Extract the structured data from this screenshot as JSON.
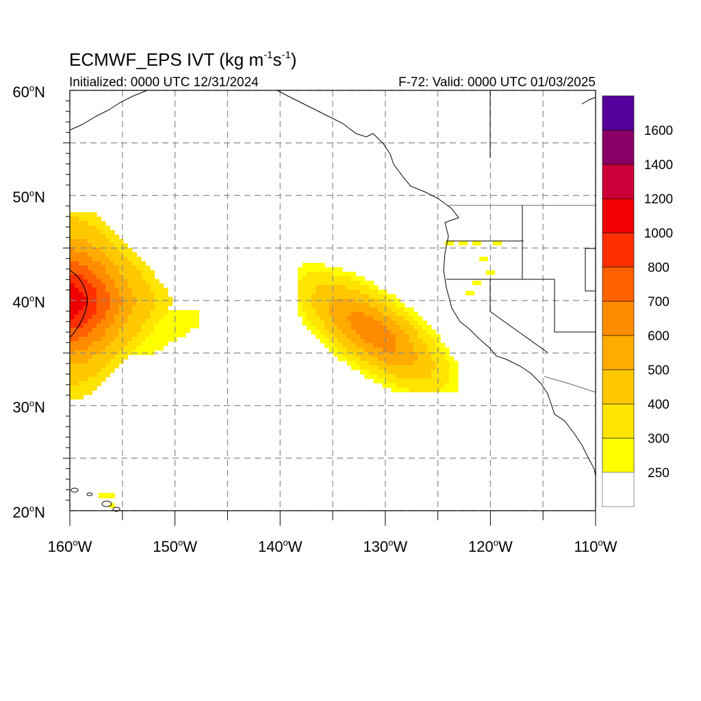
{
  "header": {
    "title_main": "ECMWF_EPS IVT (kg m",
    "title_sup1": "-1",
    "title_mid": "s",
    "title_sup2": "-1",
    "title_end": ")",
    "initialized": "Initialized: 0000 UTC 12/31/2024",
    "valid": "F-72: Valid: 0000 UTC 01/03/2025"
  },
  "map": {
    "lon_range": [
      -160,
      -110
    ],
    "lat_range": [
      20,
      60
    ],
    "grid": true,
    "lon_ticks": [
      {
        "value": -160,
        "deg": "160",
        "hemi": "W"
      },
      {
        "value": -150,
        "deg": "150",
        "hemi": "W"
      },
      {
        "value": -140,
        "deg": "140",
        "hemi": "W"
      },
      {
        "value": -130,
        "deg": "130",
        "hemi": "W"
      },
      {
        "value": -120,
        "deg": "120",
        "hemi": "W"
      },
      {
        "value": -110,
        "deg": "110",
        "hemi": "W"
      }
    ],
    "lat_ticks": [
      {
        "value": 60,
        "deg": "60",
        "hemi": "N"
      },
      {
        "value": 50,
        "deg": "50",
        "hemi": "N"
      },
      {
        "value": 40,
        "deg": "40",
        "hemi": "N"
      },
      {
        "value": 30,
        "deg": "30",
        "hemi": "N"
      },
      {
        "value": 20,
        "deg": "20",
        "hemi": "N"
      }
    ],
    "ivt_fields": [
      {
        "region": "west-edge-plume",
        "center_lon": -160,
        "center_lat": 40,
        "peak": 1000
      },
      {
        "region": "atmospheric-river-california",
        "center_lon": -130,
        "center_lat": 36.5,
        "peak": 600
      },
      {
        "region": "hawaii-spot",
        "center_lon": -156.5,
        "center_lat": 21,
        "peak": 300
      }
    ]
  },
  "colorbar": {
    "levels": [
      {
        "label": "250",
        "color": "#ffff00"
      },
      {
        "label": "300",
        "color": "#ffe400"
      },
      {
        "label": "400",
        "color": "#ffc800"
      },
      {
        "label": "500",
        "color": "#ffab00"
      },
      {
        "label": "600",
        "color": "#ff8c00"
      },
      {
        "label": "700",
        "color": "#ff6000"
      },
      {
        "label": "800",
        "color": "#ff3000"
      },
      {
        "label": "1000",
        "color": "#f00000"
      },
      {
        "label": "1200",
        "color": "#cc0038"
      },
      {
        "label": "1400",
        "color": "#880066"
      },
      {
        "label": "1600",
        "color": "#55009a"
      }
    ],
    "below_color": "#ffffff"
  }
}
